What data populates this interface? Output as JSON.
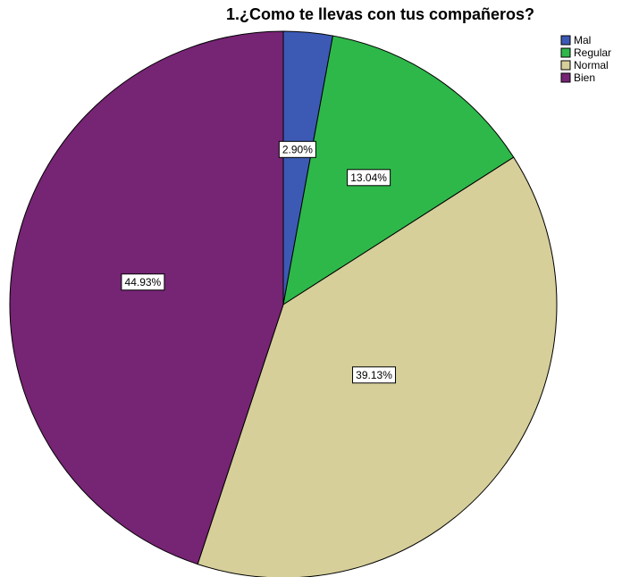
{
  "chart_data": {
    "type": "pie",
    "title": "1.¿Como te llevas con tus compañeros?",
    "slices": [
      {
        "label": "Mal",
        "value": 2.9,
        "display": "2.90%",
        "color": "#3c5ab4"
      },
      {
        "label": "Regular",
        "value": 13.04,
        "display": "13.04%",
        "color": "#2eb84a"
      },
      {
        "label": "Normal",
        "value": 39.13,
        "display": "39.13%",
        "color": "#d6cf9a"
      },
      {
        "label": "Bien",
        "value": 44.93,
        "display": "44.93%",
        "color": "#762474"
      }
    ],
    "start_angle_deg": 0,
    "direction": "clockwise",
    "legend": {
      "placement": "top-right",
      "entries": [
        "Mal",
        "Regular",
        "Normal",
        "Bien"
      ]
    }
  }
}
